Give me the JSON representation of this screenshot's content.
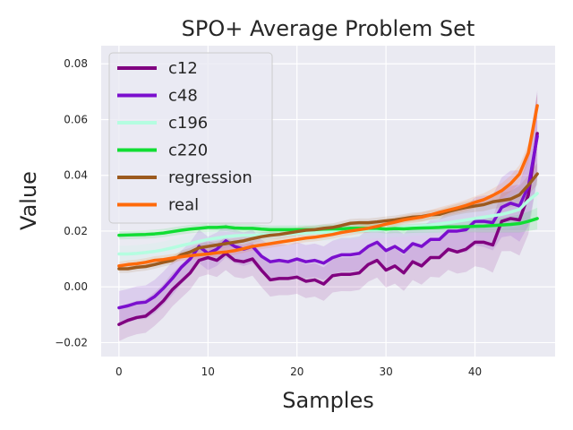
{
  "chart_data": {
    "type": "line",
    "title": "SPO+ Average Problem Set",
    "xlabel": "Samples",
    "ylabel": "Value",
    "xlim": [
      -2,
      49
    ],
    "ylim": [
      -0.025,
      0.0865
    ],
    "xticks": [
      0,
      10,
      20,
      30,
      40
    ],
    "yticks": [
      -0.02,
      0.0,
      0.02,
      0.04,
      0.06,
      0.08
    ],
    "ytick_labels": [
      "−0.02",
      "0.00",
      "0.02",
      "0.04",
      "0.06",
      "0.08"
    ],
    "grid": true,
    "legend": "top-left",
    "colors": {
      "background": "#eaeaf2",
      "grid": "#ffffff",
      "c12": "#800080",
      "c48": "#7b0fce",
      "c196": "#b4fde0",
      "c220": "#11dd33",
      "regression": "#9b5a1e",
      "real": "#ff6a0a"
    },
    "series": [
      {
        "name": "c12",
        "color": "#800080",
        "band": 0.006,
        "values": [
          -0.0135,
          -0.012,
          -0.011,
          -0.0105,
          -0.008,
          -0.005,
          -0.001,
          0.002,
          0.005,
          0.0095,
          0.0105,
          0.0095,
          0.012,
          0.0095,
          0.009,
          0.01,
          0.006,
          0.0025,
          0.003,
          0.003,
          0.0035,
          0.002,
          0.0025,
          0.001,
          0.004,
          0.0045,
          0.0045,
          0.005,
          0.008,
          0.0095,
          0.006,
          0.0075,
          0.005,
          0.009,
          0.0075,
          0.0105,
          0.0105,
          0.0135,
          0.0125,
          0.0135,
          0.016,
          0.016,
          0.015,
          0.0235,
          0.0245,
          0.024,
          0.033,
          0.055
        ]
      },
      {
        "name": "c48",
        "color": "#7b0fce",
        "band": 0.006,
        "values": [
          -0.0075,
          -0.0068,
          -0.0058,
          -0.0055,
          -0.0035,
          -0.0005,
          0.003,
          0.007,
          0.01,
          0.0145,
          0.012,
          0.0135,
          0.0165,
          0.0145,
          0.0135,
          0.0145,
          0.011,
          0.009,
          0.0095,
          0.009,
          0.01,
          0.009,
          0.0095,
          0.0085,
          0.0105,
          0.0115,
          0.0115,
          0.012,
          0.0145,
          0.016,
          0.013,
          0.0145,
          0.0125,
          0.0155,
          0.0145,
          0.017,
          0.017,
          0.02,
          0.02,
          0.0205,
          0.0235,
          0.0235,
          0.023,
          0.0285,
          0.03,
          0.029,
          0.036,
          0.054
        ]
      },
      {
        "name": "c196",
        "color": "#b4fde0",
        "band": 0.003,
        "values": [
          0.0118,
          0.0118,
          0.012,
          0.0123,
          0.0127,
          0.0133,
          0.014,
          0.0148,
          0.0155,
          0.0163,
          0.017,
          0.0175,
          0.018,
          0.0183,
          0.0185,
          0.0185,
          0.0187,
          0.0188,
          0.019,
          0.019,
          0.0192,
          0.0193,
          0.0195,
          0.0195,
          0.0197,
          0.0198,
          0.02,
          0.0202,
          0.0203,
          0.0205,
          0.0207,
          0.021,
          0.0212,
          0.0215,
          0.0218,
          0.0222,
          0.0226,
          0.023,
          0.0235,
          0.024,
          0.0245,
          0.025,
          0.0255,
          0.026,
          0.0268,
          0.0278,
          0.031,
          0.0335
        ]
      },
      {
        "name": "c220",
        "color": "#11dd33",
        "band": 0.0015,
        "values": [
          0.0185,
          0.0186,
          0.0187,
          0.0188,
          0.019,
          0.0193,
          0.0198,
          0.0203,
          0.0207,
          0.021,
          0.0213,
          0.0213,
          0.0215,
          0.0211,
          0.021,
          0.021,
          0.0207,
          0.0205,
          0.0205,
          0.0205,
          0.0205,
          0.0205,
          0.0205,
          0.0207,
          0.0208,
          0.0208,
          0.021,
          0.021,
          0.021,
          0.021,
          0.0207,
          0.0209,
          0.0208,
          0.021,
          0.0211,
          0.0212,
          0.0213,
          0.0215,
          0.0215,
          0.0216,
          0.0217,
          0.0218,
          0.022,
          0.0222,
          0.0224,
          0.0227,
          0.0235,
          0.0245
        ]
      },
      {
        "name": "regression",
        "color": "#9b5a1e",
        "band": 0.0015,
        "values": [
          0.0065,
          0.0065,
          0.007,
          0.0073,
          0.008,
          0.0088,
          0.0095,
          0.0115,
          0.0125,
          0.014,
          0.0145,
          0.015,
          0.0155,
          0.016,
          0.0165,
          0.0173,
          0.018,
          0.0185,
          0.0188,
          0.0193,
          0.0198,
          0.0203,
          0.0205,
          0.021,
          0.0213,
          0.022,
          0.0228,
          0.023,
          0.023,
          0.0233,
          0.0237,
          0.024,
          0.0245,
          0.025,
          0.0252,
          0.0258,
          0.026,
          0.027,
          0.0278,
          0.0285,
          0.029,
          0.0295,
          0.0305,
          0.031,
          0.0315,
          0.033,
          0.0365,
          0.0405
        ]
      },
      {
        "name": "real",
        "color": "#ff6a0a",
        "band": 0.0015,
        "values": [
          0.0075,
          0.008,
          0.0083,
          0.0088,
          0.0095,
          0.0098,
          0.0103,
          0.0108,
          0.0112,
          0.0115,
          0.0118,
          0.0122,
          0.0125,
          0.013,
          0.0137,
          0.0145,
          0.015,
          0.0155,
          0.016,
          0.0165,
          0.017,
          0.0175,
          0.0178,
          0.0183,
          0.0188,
          0.0195,
          0.02,
          0.0205,
          0.021,
          0.0217,
          0.0225,
          0.0232,
          0.024,
          0.0245,
          0.025,
          0.0258,
          0.0267,
          0.0275,
          0.0283,
          0.0292,
          0.0303,
          0.0313,
          0.0328,
          0.0345,
          0.037,
          0.0405,
          0.048,
          0.065
        ]
      }
    ]
  }
}
